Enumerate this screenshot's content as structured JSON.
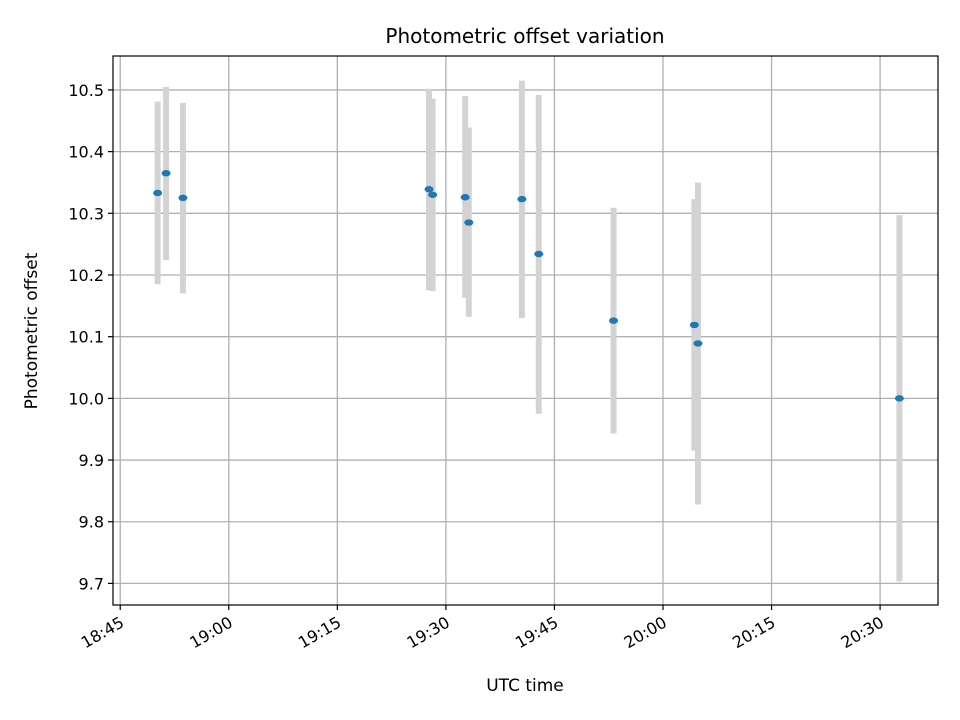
{
  "chart_data": {
    "type": "scatter",
    "title": "Photometric offset variation",
    "xlabel": "UTC time",
    "ylabel": "Photometric offset",
    "x_is_time": true,
    "xlim": [
      "18:44",
      "20:38"
    ],
    "ylim": [
      9.665,
      10.555
    ],
    "grid": true,
    "x_ticks": [
      "18:45",
      "19:00",
      "19:15",
      "19:30",
      "19:45",
      "20:00",
      "20:15",
      "20:30"
    ],
    "y_ticks": [
      9.7,
      9.8,
      9.9,
      10.0,
      10.1,
      10.2,
      10.3,
      10.4,
      10.5
    ],
    "y_tick_labels": [
      "9.7",
      "9.8",
      "9.9",
      "10.0",
      "10.1",
      "10.2",
      "10.3",
      "10.4",
      "10.5"
    ],
    "colors": {
      "point": "#1f77b4",
      "errorbar": "#d3d3d3",
      "grid": "#b0b0b0"
    },
    "points": [
      {
        "time": "18:50:10",
        "y": 10.333,
        "ylo": 10.185,
        "yhi": 10.481
      },
      {
        "time": "18:51:20",
        "y": 10.365,
        "ylo": 10.224,
        "yhi": 10.505
      },
      {
        "time": "18:53:40",
        "y": 10.325,
        "ylo": 10.17,
        "yhi": 10.479
      },
      {
        "time": "19:27:40",
        "y": 10.339,
        "ylo": 10.175,
        "yhi": 10.502
      },
      {
        "time": "19:28:10",
        "y": 10.33,
        "ylo": 10.174,
        "yhi": 10.486
      },
      {
        "time": "19:32:40",
        "y": 10.326,
        "ylo": 10.163,
        "yhi": 10.49
      },
      {
        "time": "19:33:10",
        "y": 10.285,
        "ylo": 10.132,
        "yhi": 10.439
      },
      {
        "time": "19:40:30",
        "y": 10.323,
        "ylo": 10.13,
        "yhi": 10.515
      },
      {
        "time": "19:42:50",
        "y": 10.234,
        "ylo": 9.975,
        "yhi": 10.492
      },
      {
        "time": "19:53:10",
        "y": 10.126,
        "ylo": 9.943,
        "yhi": 10.309
      },
      {
        "time": "20:04:20",
        "y": 10.119,
        "ylo": 9.915,
        "yhi": 10.323
      },
      {
        "time": "20:04:50",
        "y": 10.089,
        "ylo": 9.828,
        "yhi": 10.35
      },
      {
        "time": "20:32:40",
        "y": 10.0,
        "ylo": 9.703,
        "yhi": 10.297
      }
    ]
  }
}
